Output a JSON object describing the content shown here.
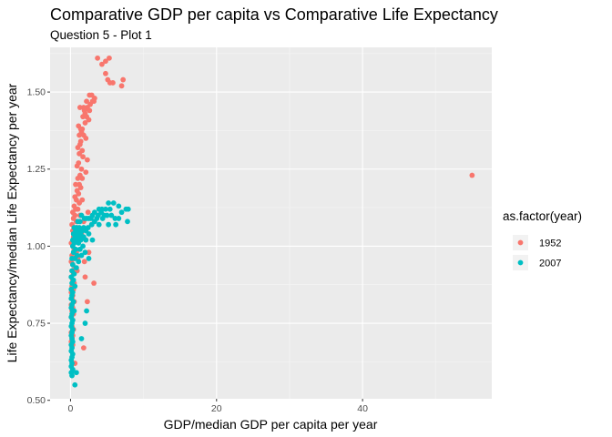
{
  "chart_data": {
    "type": "scatter",
    "title": "Comparative GDP per capita vs Comparative Life Expectancy",
    "subtitle": "Question 5 - Plot 1",
    "xlabel": "GDP/median GDP per capita per year",
    "ylabel": "Life Expectancy/median Life Expectancy per year",
    "xlim": [
      -2.8,
      57.7
    ],
    "ylim": [
      0.505,
      1.645
    ],
    "x_ticks": [
      0,
      20,
      40
    ],
    "y_ticks": [
      0.5,
      0.75,
      1.0,
      1.25,
      1.5
    ],
    "x_tick_labels": [
      "0",
      "20",
      "40"
    ],
    "y_tick_labels": [
      "0.50",
      "0.75",
      "1.00",
      "1.25",
      "1.50"
    ],
    "grid": true,
    "legend": {
      "title": "as.factor(year)",
      "position": "right",
      "entries": [
        {
          "label": "1952",
          "color": "#F8766D"
        },
        {
          "label": "2007",
          "color": "#00BFC4"
        }
      ]
    },
    "series": [
      {
        "name": "1952",
        "color": "#F8766D",
        "points": [
          [
            3.7,
            1.61
          ],
          [
            4.3,
            1.59
          ],
          [
            4.8,
            1.6
          ],
          [
            5.3,
            1.61
          ],
          [
            7.2,
            1.54
          ],
          [
            5.1,
            1.54
          ],
          [
            5.4,
            1.53
          ],
          [
            5.8,
            1.53
          ],
          [
            7.0,
            1.52
          ],
          [
            4.8,
            1.56
          ],
          [
            2.6,
            1.49
          ],
          [
            2.9,
            1.49
          ],
          [
            3.3,
            1.48
          ],
          [
            2.2,
            1.47
          ],
          [
            2.7,
            1.46
          ],
          [
            3.0,
            1.47
          ],
          [
            3.2,
            1.47
          ],
          [
            2.3,
            1.45
          ],
          [
            2.6,
            1.44
          ],
          [
            1.8,
            1.45
          ],
          [
            1.9,
            1.44
          ],
          [
            2.2,
            1.42
          ],
          [
            2.5,
            1.41
          ],
          [
            1.7,
            1.42
          ],
          [
            2.0,
            1.4
          ],
          [
            1.1,
            1.39
          ],
          [
            1.6,
            1.38
          ],
          [
            1.4,
            1.38
          ],
          [
            1.5,
            1.37
          ],
          [
            1.2,
            1.36
          ],
          [
            1.8,
            1.36
          ],
          [
            2.1,
            1.35
          ],
          [
            1.4,
            1.34
          ],
          [
            1.3,
            1.33
          ],
          [
            1.0,
            1.32
          ],
          [
            1.6,
            1.31
          ],
          [
            1.2,
            1.3
          ],
          [
            1.7,
            1.29
          ],
          [
            2.3,
            1.28
          ],
          [
            1.1,
            1.27
          ],
          [
            0.9,
            1.26
          ],
          [
            1.5,
            1.25
          ],
          [
            2.1,
            1.24
          ],
          [
            1.3,
            1.23
          ],
          [
            1.0,
            1.22
          ],
          [
            1.6,
            1.22
          ],
          [
            0.7,
            1.2
          ],
          [
            1.2,
            1.2
          ],
          [
            1.4,
            1.19
          ],
          [
            0.9,
            1.18
          ],
          [
            1.1,
            1.17
          ],
          [
            0.6,
            1.16
          ],
          [
            0.8,
            1.15
          ],
          [
            1.2,
            1.14
          ],
          [
            0.5,
            1.13
          ],
          [
            0.7,
            1.12
          ],
          [
            1.0,
            1.12
          ],
          [
            0.3,
            1.11
          ],
          [
            0.6,
            1.1
          ],
          [
            1.3,
            1.1
          ],
          [
            0.4,
            1.09
          ],
          [
            0.8,
            1.08
          ],
          [
            0.2,
            1.07
          ],
          [
            0.5,
            1.06
          ],
          [
            0.9,
            1.06
          ],
          [
            1.8,
            1.08
          ],
          [
            0.3,
            1.05
          ],
          [
            0.6,
            1.04
          ],
          [
            0.4,
            1.03
          ],
          [
            0.7,
            1.02
          ],
          [
            1.5,
            1.04
          ],
          [
            0.1,
            1.01
          ],
          [
            0.3,
            1.0
          ],
          [
            0.5,
            0.99
          ],
          [
            0.8,
            0.98
          ],
          [
            0.2,
            0.97
          ],
          [
            0.4,
            0.96
          ],
          [
            1.0,
            0.96
          ],
          [
            0.1,
            0.95
          ],
          [
            0.3,
            0.94
          ],
          [
            0.6,
            0.93
          ],
          [
            0.2,
            0.92
          ],
          [
            0.4,
            0.91
          ],
          [
            0.9,
            0.92
          ],
          [
            0.1,
            0.9
          ],
          [
            0.3,
            0.89
          ],
          [
            0.5,
            0.88
          ],
          [
            0.2,
            0.87
          ],
          [
            0.4,
            0.86
          ],
          [
            0.1,
            0.85
          ],
          [
            0.3,
            0.84
          ],
          [
            0.2,
            0.83
          ],
          [
            0.5,
            0.82
          ],
          [
            0.1,
            0.81
          ],
          [
            0.3,
            0.8
          ],
          [
            0.2,
            0.79
          ],
          [
            0.4,
            0.78
          ],
          [
            0.1,
            0.77
          ],
          [
            0.3,
            0.76
          ],
          [
            0.2,
            0.74
          ],
          [
            0.4,
            0.73
          ],
          [
            0.1,
            0.72
          ],
          [
            0.3,
            0.71
          ],
          [
            0.2,
            0.7
          ],
          [
            0.1,
            0.69
          ],
          [
            0.3,
            0.68
          ],
          [
            1.8,
            0.67
          ],
          [
            2.3,
            0.82
          ],
          [
            3.2,
            0.88
          ],
          [
            2.0,
            0.9
          ],
          [
            1.9,
            0.95
          ],
          [
            2.5,
            0.98
          ],
          [
            2.1,
            1.02
          ],
          [
            2.9,
            1.07
          ],
          [
            2.4,
            1.11
          ],
          [
            1.6,
            1.15
          ],
          [
            1.3,
            1.45
          ],
          [
            2.0,
            1.43
          ],
          [
            55.0,
            1.23
          ],
          [
            0.6,
            0.62
          ]
        ]
      },
      {
        "name": "2007",
        "color": "#00BFC4",
        "points": [
          [
            5.2,
            1.14
          ],
          [
            5.9,
            1.14
          ],
          [
            6.6,
            1.13
          ],
          [
            7.0,
            1.11
          ],
          [
            7.6,
            1.12
          ],
          [
            7.9,
            1.12
          ],
          [
            5.4,
            1.12
          ],
          [
            4.8,
            1.12
          ],
          [
            4.3,
            1.12
          ],
          [
            3.9,
            1.12
          ],
          [
            4.2,
            1.11
          ],
          [
            4.6,
            1.1
          ],
          [
            5.0,
            1.1
          ],
          [
            5.6,
            1.1
          ],
          [
            6.1,
            1.09
          ],
          [
            6.6,
            1.09
          ],
          [
            4.4,
            1.09
          ],
          [
            3.8,
            1.1
          ],
          [
            3.3,
            1.11
          ],
          [
            3.6,
            1.09
          ],
          [
            3.0,
            1.1
          ],
          [
            2.8,
            1.09
          ],
          [
            2.5,
            1.09
          ],
          [
            2.2,
            1.09
          ],
          [
            1.9,
            1.09
          ],
          [
            1.5,
            1.1
          ],
          [
            1.3,
            1.08
          ],
          [
            1.0,
            1.08
          ],
          [
            7.8,
            1.08
          ],
          [
            6.2,
            1.07
          ],
          [
            5.2,
            1.07
          ],
          [
            3.9,
            1.07
          ],
          [
            3.3,
            1.08
          ],
          [
            2.9,
            1.07
          ],
          [
            2.4,
            1.06
          ],
          [
            1.8,
            1.06
          ],
          [
            1.2,
            1.06
          ],
          [
            0.8,
            1.06
          ],
          [
            0.5,
            1.06
          ],
          [
            2.1,
            1.05
          ],
          [
            1.6,
            1.05
          ],
          [
            1.1,
            1.05
          ],
          [
            0.7,
            1.05
          ],
          [
            0.4,
            1.04
          ],
          [
            1.4,
            1.04
          ],
          [
            0.9,
            1.04
          ],
          [
            2.5,
            1.04
          ],
          [
            0.6,
            1.03
          ],
          [
            1.2,
            1.03
          ],
          [
            1.8,
            1.03
          ],
          [
            0.3,
            1.02
          ],
          [
            0.8,
            1.02
          ],
          [
            1.4,
            1.02
          ],
          [
            2.1,
            1.02
          ],
          [
            0.5,
            1.01
          ],
          [
            1.1,
            1.01
          ],
          [
            1.7,
            1.0
          ],
          [
            0.3,
            1.0
          ],
          [
            0.7,
            0.99
          ],
          [
            1.3,
            0.99
          ],
          [
            2.0,
            0.98
          ],
          [
            0.4,
            0.98
          ],
          [
            0.9,
            0.97
          ],
          [
            1.5,
            0.97
          ],
          [
            0.2,
            0.96
          ],
          [
            0.6,
            0.96
          ],
          [
            1.1,
            0.95
          ],
          [
            0.3,
            0.94
          ],
          [
            0.8,
            0.93
          ],
          [
            0.2,
            0.92
          ],
          [
            0.5,
            0.91
          ],
          [
            0.1,
            0.9
          ],
          [
            0.4,
            0.89
          ],
          [
            0.2,
            0.88
          ],
          [
            0.6,
            0.87
          ],
          [
            0.1,
            0.86
          ],
          [
            0.3,
            0.85
          ],
          [
            0.2,
            0.84
          ],
          [
            0.1,
            0.83
          ],
          [
            0.4,
            0.82
          ],
          [
            0.2,
            0.81
          ],
          [
            0.1,
            0.8
          ],
          [
            0.3,
            0.79
          ],
          [
            0.2,
            0.78
          ],
          [
            0.1,
            0.77
          ],
          [
            0.3,
            0.76
          ],
          [
            0.2,
            0.75
          ],
          [
            0.1,
            0.74
          ],
          [
            0.3,
            0.73
          ],
          [
            0.2,
            0.72
          ],
          [
            0.1,
            0.71
          ],
          [
            0.2,
            0.7
          ],
          [
            0.3,
            0.69
          ],
          [
            0.1,
            0.68
          ],
          [
            0.2,
            0.67
          ],
          [
            0.1,
            0.66
          ],
          [
            0.3,
            0.65
          ],
          [
            0.2,
            0.64
          ],
          [
            0.1,
            0.63
          ],
          [
            0.2,
            0.62
          ],
          [
            0.1,
            0.61
          ],
          [
            0.3,
            0.6
          ],
          [
            0.1,
            0.59
          ],
          [
            0.2,
            0.58
          ],
          [
            0.8,
            0.59
          ],
          [
            0.6,
            0.55
          ],
          [
            2.0,
            0.75
          ],
          [
            2.2,
            0.79
          ],
          [
            1.5,
            0.7
          ],
          [
            2.5,
            0.96
          ],
          [
            3.0,
            1.02
          ],
          [
            0.5,
            0.79
          ]
        ]
      }
    ]
  }
}
